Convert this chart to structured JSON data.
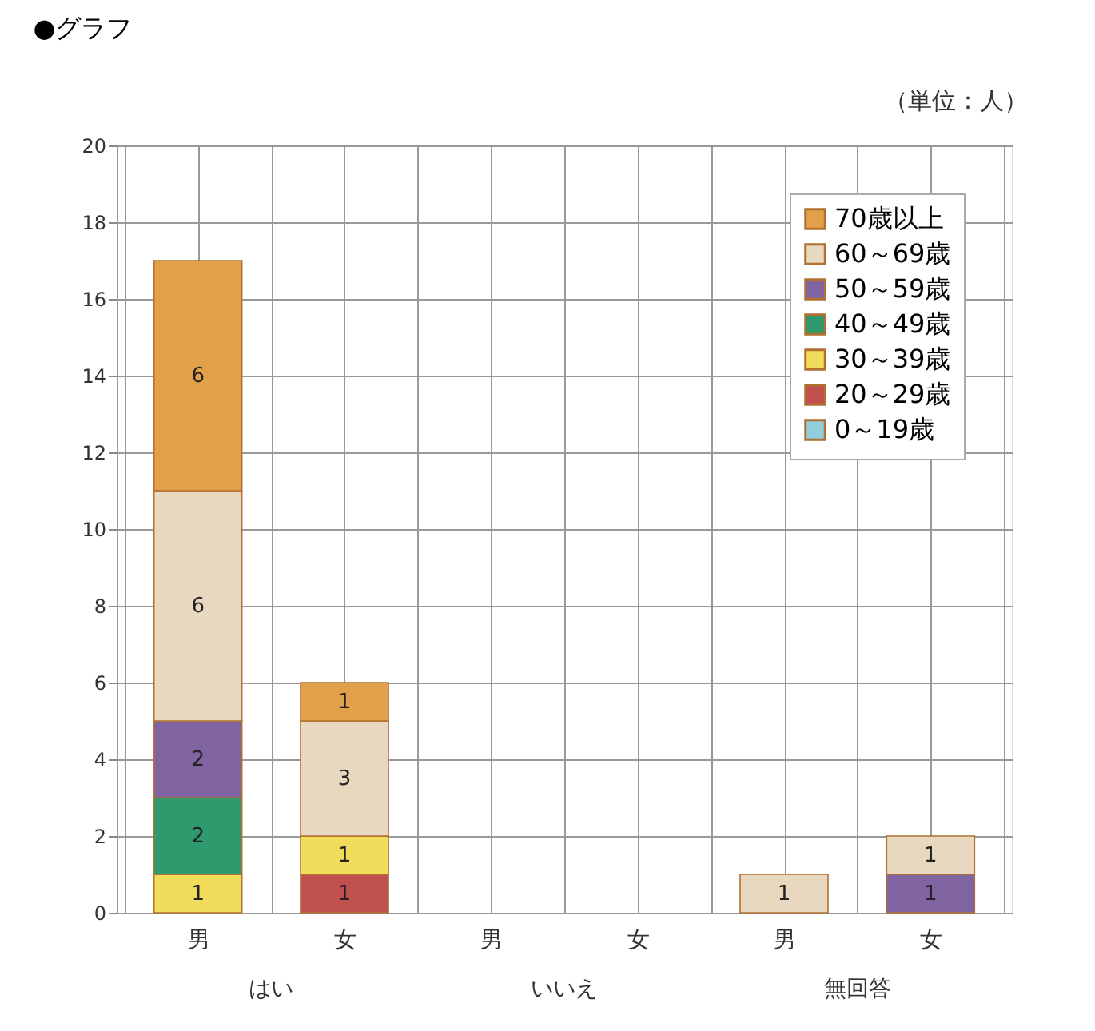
{
  "chart_data": {
    "type": "bar",
    "title": "●グラフ",
    "stacked": true,
    "categories": [
      "男",
      "女",
      "男",
      "女",
      "男",
      "女"
    ],
    "annotations": [
      "（単位：人）",
      "はい",
      "いいえ",
      "無回答"
    ],
    "series": [
      {
        "name": "0～19歳",
        "color": "#92cddc",
        "values": [
          null,
          null,
          null,
          null,
          null,
          null
        ]
      },
      {
        "name": "20～29歳",
        "color": "#c0504d",
        "values": [
          null,
          1,
          null,
          null,
          null,
          null
        ]
      },
      {
        "name": "30～39歳",
        "color": "#f2dc5b",
        "values": [
          1,
          1,
          null,
          null,
          null,
          null
        ]
      },
      {
        "name": "40～49歳",
        "color": "#2e9a6e",
        "values": [
          2,
          null,
          null,
          null,
          null,
          null
        ]
      },
      {
        "name": "50～59歳",
        "color": "#8064a2",
        "values": [
          2,
          null,
          null,
          null,
          null,
          1
        ]
      },
      {
        "name": "60～69歳",
        "color": "#e8d8bf",
        "values": [
          6,
          3,
          null,
          null,
          1,
          1
        ]
      },
      {
        "name": "70歳以上",
        "color": "#e3a04a",
        "values": [
          6,
          1,
          null,
          null,
          null,
          null
        ]
      }
    ],
    "ylim": [
      0,
      20
    ],
    "yticks": [
      0,
      2,
      4,
      6,
      8,
      10,
      12,
      14,
      16,
      18,
      20
    ],
    "grid": true,
    "legend": "top right",
    "data_labels": true
  }
}
